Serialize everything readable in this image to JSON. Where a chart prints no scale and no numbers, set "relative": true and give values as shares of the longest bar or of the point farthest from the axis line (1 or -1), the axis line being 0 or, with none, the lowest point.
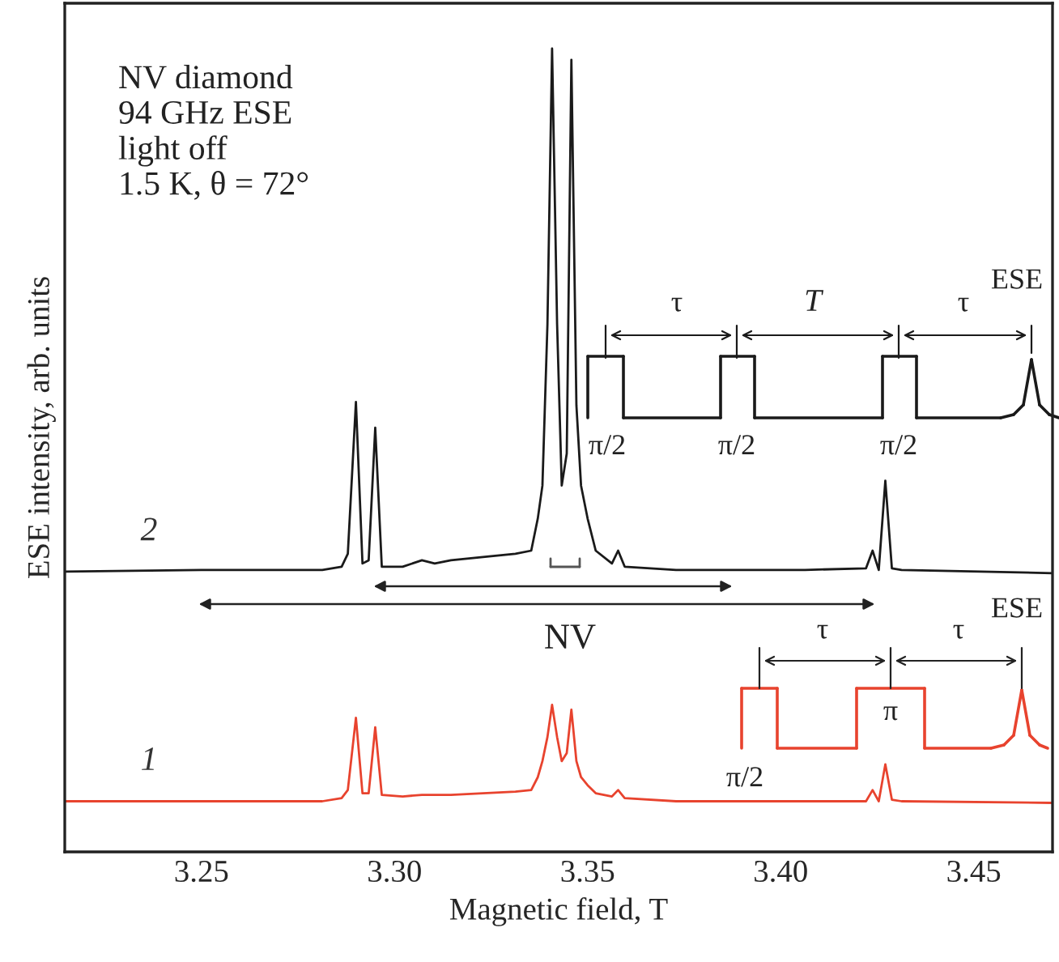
{
  "chart_data": {
    "type": "line",
    "relative": true,
    "xlabel": "Magnetic field, T",
    "ylabel": "ESE intensity, arb. units",
    "xlim": [
      3.2146,
      3.4704
    ],
    "xticks": [
      3.25,
      {
        "value": 3.3,
        "label": "3.30"
      },
      3.35,
      {
        "value": 3.4,
        "label": "3.40"
      },
      3.45
    ],
    "tick_labels": "x",
    "grid": false,
    "legend": false,
    "annotations": [
      "NV diamond\n94 GHz ESE\nlight off\n1.5 K, θ = 72°",
      "NV",
      "τ",
      "T",
      "τ",
      "ESE",
      "π/2",
      "π/2",
      "π/2",
      "τ",
      "τ",
      "ESE",
      "π/2",
      "π"
    ],
    "series": [
      {
        "name": "2",
        "color": "#1a1a1a",
        "x": [
          3.2146,
          3.25,
          3.2813,
          3.2863,
          3.2879,
          3.29,
          3.2917,
          3.2933,
          3.295,
          3.2967,
          3.3021,
          3.3071,
          3.3104,
          3.3146,
          3.3229,
          3.3313,
          3.3354,
          3.3371,
          3.3383,
          3.3396,
          3.3408,
          3.3421,
          3.3433,
          3.3446,
          3.3458,
          3.3471,
          3.3483,
          3.35,
          3.3521,
          3.3563,
          3.3579,
          3.3596,
          3.3729,
          3.4063,
          3.4221,
          3.4238,
          3.4254,
          3.4271,
          3.4288,
          3.4313,
          3.4704
        ],
        "values": [
          0.349,
          0.351,
          0.351,
          0.355,
          0.371,
          0.56,
          0.359,
          0.363,
          0.528,
          0.355,
          0.355,
          0.363,
          0.359,
          0.363,
          0.367,
          0.371,
          0.375,
          0.415,
          0.456,
          0.657,
          1.0,
          0.657,
          0.456,
          0.496,
          0.986,
          0.556,
          0.456,
          0.415,
          0.375,
          0.359,
          0.375,
          0.355,
          0.351,
          0.351,
          0.353,
          0.375,
          0.351,
          0.462,
          0.353,
          0.351,
          0.347
        ]
      },
      {
        "name": "1",
        "color": "#e8432e",
        "x": [
          3.2146,
          3.25,
          3.2813,
          3.2863,
          3.2879,
          3.29,
          3.2917,
          3.2933,
          3.295,
          3.2967,
          3.3021,
          3.3071,
          3.3104,
          3.3146,
          3.3229,
          3.3313,
          3.3354,
          3.3371,
          3.3383,
          3.3396,
          3.3408,
          3.3421,
          3.3433,
          3.3446,
          3.3458,
          3.3471,
          3.3483,
          3.35,
          3.3521,
          3.3563,
          3.3579,
          3.3596,
          3.3729,
          3.4063,
          3.4221,
          3.4238,
          3.4254,
          3.4271,
          3.4288,
          3.4313,
          3.4704
        ],
        "values": [
          0.063,
          0.063,
          0.063,
          0.067,
          0.077,
          0.167,
          0.073,
          0.073,
          0.155,
          0.071,
          0.069,
          0.071,
          0.071,
          0.071,
          0.073,
          0.075,
          0.077,
          0.093,
          0.113,
          0.143,
          0.183,
          0.143,
          0.113,
          0.123,
          0.177,
          0.113,
          0.093,
          0.083,
          0.073,
          0.069,
          0.077,
          0.067,
          0.063,
          0.063,
          0.063,
          0.077,
          0.063,
          0.109,
          0.065,
          0.063,
          0.061
        ]
      }
    ]
  }
}
